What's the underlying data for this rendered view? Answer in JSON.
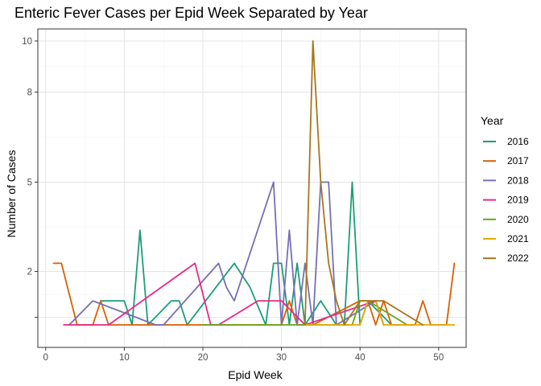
{
  "chart_data": {
    "type": "line",
    "title": "Enteric Fever Cases per Epid Week Separated by Year",
    "xlabel": "Epid Week",
    "ylabel": "Number of Cases",
    "xlim": [
      -1,
      53.5
    ],
    "ylim": [
      -0.2,
      10.4
    ],
    "x_ticks": [
      0,
      10,
      20,
      30,
      40,
      50
    ],
    "y_ticks": [
      {
        "value": 0.8,
        "label": ""
      },
      {
        "value": 2.33,
        "label": "2"
      },
      {
        "value": 5.3,
        "label": "5"
      },
      {
        "value": 8.3,
        "label": "8"
      },
      {
        "value": 10,
        "label": "10"
      }
    ],
    "grid": true,
    "legend": {
      "title": "Year",
      "position": "right"
    },
    "series": [
      {
        "name": "2016",
        "color": "#1b9e77",
        "points": [
          [
            7,
            1.35
          ],
          [
            10,
            1.35
          ],
          [
            11,
            0.55
          ],
          [
            12,
            3.7
          ],
          [
            13,
            0.55
          ],
          [
            16,
            1.35
          ],
          [
            17,
            1.35
          ],
          [
            18,
            0.55
          ],
          [
            24,
            2.6
          ],
          [
            26,
            1.8
          ],
          [
            28,
            0.55
          ],
          [
            29,
            2.6
          ],
          [
            30,
            2.6
          ],
          [
            31,
            0.55
          ],
          [
            32,
            2.6
          ],
          [
            33,
            0.55
          ],
          [
            35,
            1.35
          ],
          [
            37,
            0.55
          ],
          [
            38,
            0.55
          ],
          [
            39,
            5.3
          ],
          [
            40,
            0.55
          ],
          [
            41,
            1.35
          ],
          [
            44,
            0.55
          ],
          [
            45,
            0.55
          ]
        ]
      },
      {
        "name": "2017",
        "color": "#d95f02",
        "points": [
          [
            1,
            2.6
          ],
          [
            2,
            2.6
          ],
          [
            4,
            0.55
          ],
          [
            6,
            0.55
          ],
          [
            7,
            1.35
          ],
          [
            8,
            0.55
          ],
          [
            30,
            0.55
          ],
          [
            31,
            1.35
          ],
          [
            32,
            0.55
          ],
          [
            33,
            0.55
          ],
          [
            34,
            0.55
          ],
          [
            40,
            1.35
          ],
          [
            41,
            1.35
          ],
          [
            42,
            0.55
          ],
          [
            43,
            1.35
          ],
          [
            44,
            0.55
          ],
          [
            47,
            0.55
          ],
          [
            48,
            1.35
          ],
          [
            49,
            0.55
          ],
          [
            51,
            0.55
          ],
          [
            52,
            2.6
          ]
        ]
      },
      {
        "name": "2018",
        "color": "#7570b3",
        "points": [
          [
            3,
            0.55
          ],
          [
            6,
            1.35
          ],
          [
            10,
            0.95
          ],
          [
            14,
            0.55
          ],
          [
            15,
            0.55
          ],
          [
            22,
            2.6
          ],
          [
            23,
            1.8
          ],
          [
            24,
            1.35
          ],
          [
            29,
            5.3
          ],
          [
            30,
            0.55
          ],
          [
            31,
            3.7
          ],
          [
            32,
            0.55
          ],
          [
            33,
            2.6
          ],
          [
            34,
            0.55
          ],
          [
            35,
            5.3
          ],
          [
            36,
            5.3
          ],
          [
            37,
            0.55
          ],
          [
            42,
            1.35
          ],
          [
            43,
            0.55
          ]
        ]
      },
      {
        "name": "2019",
        "color": "#e7298a",
        "points": [
          [
            2.3,
            0.55
          ],
          [
            8,
            0.55
          ],
          [
            19,
            2.6
          ],
          [
            21,
            0.55
          ],
          [
            22,
            0.55
          ],
          [
            27,
            1.35
          ],
          [
            30,
            1.35
          ],
          [
            33,
            0.55
          ],
          [
            42,
            1.35
          ],
          [
            43,
            0.55
          ]
        ]
      },
      {
        "name": "2020",
        "color": "#66a61e",
        "points": [
          [
            20,
            0.55
          ],
          [
            33,
            0.55
          ],
          [
            39,
            0.55
          ],
          [
            40,
            1.35
          ],
          [
            41,
            1.35
          ],
          [
            46,
            0.55
          ]
        ]
      },
      {
        "name": "2021",
        "color": "#e6ab02",
        "points": [
          [
            33,
            0.55
          ],
          [
            40,
            0.55
          ],
          [
            41,
            1.35
          ],
          [
            42,
            1.35
          ],
          [
            43,
            0.55
          ],
          [
            52,
            0.55
          ]
        ]
      },
      {
        "name": "2022",
        "color": "#a6761d",
        "points": [
          [
            33,
            0.55
          ],
          [
            34,
            10
          ],
          [
            35,
            5.3
          ],
          [
            36,
            2.6
          ],
          [
            37,
            1.35
          ],
          [
            38,
            0.55
          ],
          [
            40,
            1.35
          ],
          [
            42,
            1.35
          ],
          [
            43,
            1.35
          ],
          [
            48,
            0.55
          ]
        ]
      }
    ]
  }
}
